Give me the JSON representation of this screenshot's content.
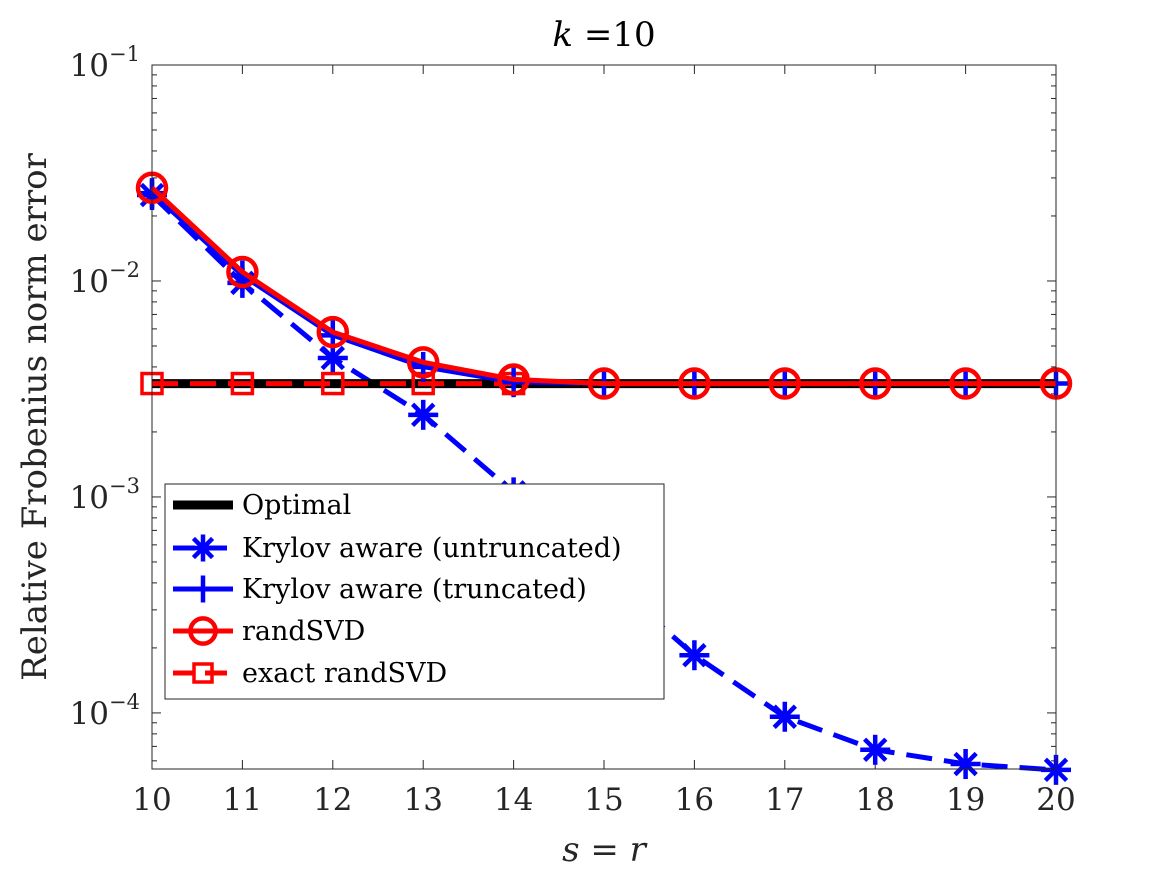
{
  "chart_data": {
    "type": "line",
    "title_var": "k",
    "title_eq": " =",
    "title_value": "10",
    "xlabel_left": "s",
    "xlabel_op": " = ",
    "xlabel_right": "r",
    "ylabel": "Relative Frobenius norm error",
    "yscale": "log",
    "xlim": [
      10,
      20
    ],
    "ylim": [
      5.5e-05,
      0.1
    ],
    "x_ticks": [
      10,
      11,
      12,
      13,
      14,
      15,
      16,
      17,
      18,
      19,
      20
    ],
    "x_tick_labels": [
      "10",
      "11",
      "12",
      "13",
      "14",
      "15",
      "16",
      "17",
      "18",
      "19",
      "20"
    ],
    "y_ticks": [
      {
        "base": "10",
        "exp": "−1",
        "value": 0.1
      },
      {
        "base": "10",
        "exp": "−2",
        "value": 0.01
      },
      {
        "base": "10",
        "exp": "−3",
        "value": 0.001
      },
      {
        "base": "10",
        "exp": "−4",
        "value": 0.0001
      }
    ],
    "grid": false,
    "legend_position": "bottom-left",
    "series": [
      {
        "name": "Optimal",
        "color": "#000000",
        "line": "solid",
        "marker": "none",
        "x": [
          10,
          11,
          12,
          13,
          14,
          15,
          16,
          17,
          18,
          19,
          20
        ],
        "y": [
          0.00335,
          0.00335,
          0.00335,
          0.00335,
          0.00335,
          0.00335,
          0.00335,
          0.00335,
          0.00335,
          0.00335,
          0.00335
        ]
      },
      {
        "name": "Krylov aware (untruncated)",
        "color": "#0000ff",
        "line": "dashed",
        "marker": "asterisk",
        "x": [
          10,
          11,
          12,
          13,
          14,
          15,
          16,
          17,
          18,
          19,
          20
        ],
        "y": [
          0.025,
          0.0098,
          0.0044,
          0.0024,
          0.00105,
          0.00043,
          0.000185,
          9.6e-05,
          6.75e-05,
          5.8e-05,
          5.45e-05
        ]
      },
      {
        "name": "Krylov aware (truncated)",
        "color": "#0000ff",
        "line": "solid",
        "marker": "plus",
        "x": [
          10,
          11,
          12,
          13,
          14,
          15,
          16,
          17,
          18,
          19,
          20
        ],
        "y": [
          0.0255,
          0.0106,
          0.0056,
          0.004,
          0.0034,
          0.00335,
          0.00335,
          0.00335,
          0.00335,
          0.00335,
          0.00335
        ]
      },
      {
        "name": "randSVD",
        "color": "#ff0000",
        "line": "solid",
        "marker": "circle",
        "x": [
          10,
          11,
          12,
          13,
          14,
          15,
          16,
          17,
          18,
          19,
          20
        ],
        "y": [
          0.027,
          0.011,
          0.0058,
          0.0042,
          0.0035,
          0.00335,
          0.00335,
          0.00335,
          0.00335,
          0.00335,
          0.00335
        ]
      },
      {
        "name": "exact randSVD",
        "color": "#ff0000",
        "line": "dashed",
        "marker": "square",
        "x": [
          10,
          11,
          12,
          13,
          14
        ],
        "y": [
          0.00335,
          0.00335,
          0.00335,
          0.00335,
          0.00335
        ]
      }
    ]
  }
}
